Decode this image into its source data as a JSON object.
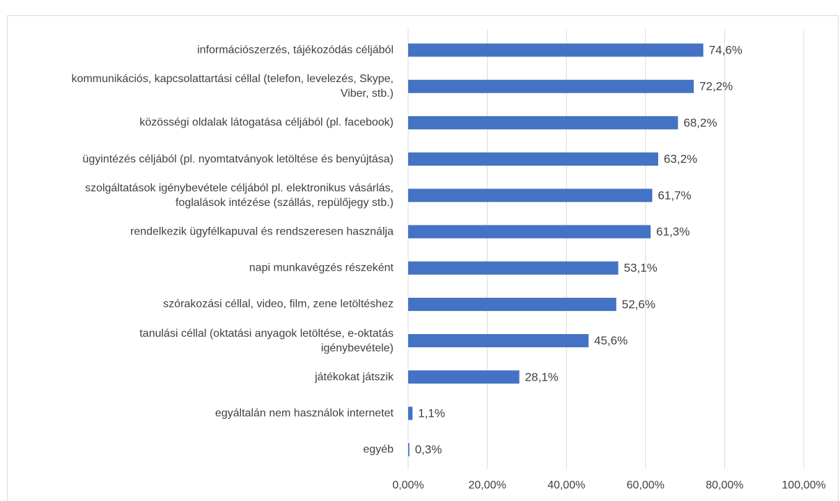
{
  "chart_data": {
    "type": "bar",
    "orientation": "horizontal",
    "categories": [
      "információszerzés, tájékozódás céljából",
      "kommunikációs, kapcsolattartási céllal (telefon, levelezés, Skype, Viber, stb.)",
      "közösségi oldalak látogatása céljából (pl. facebook)",
      "ügyintézés céljából (pl. nyomtatványok letöltése és benyújtása)",
      "szolgáltatások igénybevétele céljából pl. elektronikus vásárlás, foglalások intézése (szállás, repülőjegy stb.)",
      "rendelkezik ügyfélkapuval és rendszeresen használja",
      "napi munkavégzés részeként",
      "szórakozási céllal, video, film, zene letöltéshez",
      "tanulási céllal (oktatási anyagok letöltése, e-oktatás igénybevétele)",
      "játékokat játszik",
      "egyáltalán nem használok internetet",
      "egyéb"
    ],
    "values": [
      74.6,
      72.2,
      68.2,
      63.2,
      61.7,
      61.3,
      53.1,
      52.6,
      45.6,
      28.1,
      1.1,
      0.3
    ],
    "value_labels": [
      "74,6%",
      "72,2%",
      "68,2%",
      "63,2%",
      "61,7%",
      "61,3%",
      "53,1%",
      "52,6%",
      "45,6%",
      "28,1%",
      "1,1%",
      "0,3%"
    ],
    "color": "#4472c4",
    "xlim": [
      0,
      100
    ],
    "xticks": [
      {
        "value": 0,
        "label": "0,00%"
      },
      {
        "value": 20,
        "label": "20,00%"
      },
      {
        "value": 40,
        "label": "40,00%"
      },
      {
        "value": 60,
        "label": "60,00%"
      },
      {
        "value": 80,
        "label": "80,00%"
      },
      {
        "value": 100,
        "label": "100,00%"
      }
    ],
    "grid": true
  }
}
